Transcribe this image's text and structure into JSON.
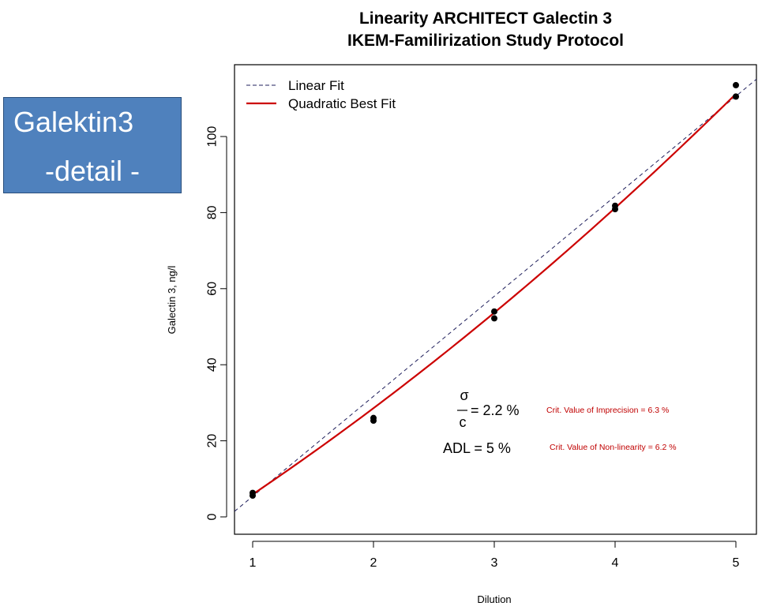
{
  "badge": {
    "line1": "Galektin3",
    "line2": "-detail -"
  },
  "chart_data": {
    "type": "scatter",
    "title": "Linearity ARCHITECT Galectin 3",
    "subtitle": "IKEM-Familirization Study Protocol",
    "xlabel": "Dilution",
    "ylabel": "Galectin 3, ng/l",
    "xlim": [
      0.85,
      5.2
    ],
    "ylim": [
      -5,
      115
    ],
    "x_ticks": [
      1,
      2,
      3,
      4,
      5
    ],
    "y_ticks": [
      0,
      20,
      40,
      60,
      80,
      100
    ],
    "grid": false,
    "legend_position": "top-left",
    "legend": [
      {
        "label": "Linear Fit",
        "style": "dashed",
        "color": "#1f1f5c"
      },
      {
        "label": "Quadratic Best Fit",
        "style": "solid",
        "color": "#cc0000"
      }
    ],
    "points": [
      {
        "x": 1,
        "y": 6.3
      },
      {
        "x": 1,
        "y": 5.6
      },
      {
        "x": 2,
        "y": 26.0
      },
      {
        "x": 2,
        "y": 25.3
      },
      {
        "x": 3,
        "y": 54.0
      },
      {
        "x": 3,
        "y": 52.2
      },
      {
        "x": 4,
        "y": 81.8
      },
      {
        "x": 4,
        "y": 80.9
      },
      {
        "x": 5,
        "y": 113.5
      },
      {
        "x": 5,
        "y": 110.5
      }
    ],
    "linear_fit": {
      "slope": 26.3,
      "intercept": -20.9,
      "x_range": [
        0.85,
        5.2
      ]
    },
    "quadratic_fit": {
      "a": 1.22,
      "b": 19.0,
      "c": -14.3,
      "x_range": [
        1,
        5
      ]
    },
    "annotations": {
      "sigma_symbol": "σ",
      "c_symbol": "c",
      "cv_text": "= 2.2 %",
      "adl_text": "ADL = 5  %",
      "imprecision_text": "Crit. Value of Imprecision =  6.3 %",
      "nonlinearity_text": "Crit. Value of Non-linearity = 6.2  %"
    }
  }
}
